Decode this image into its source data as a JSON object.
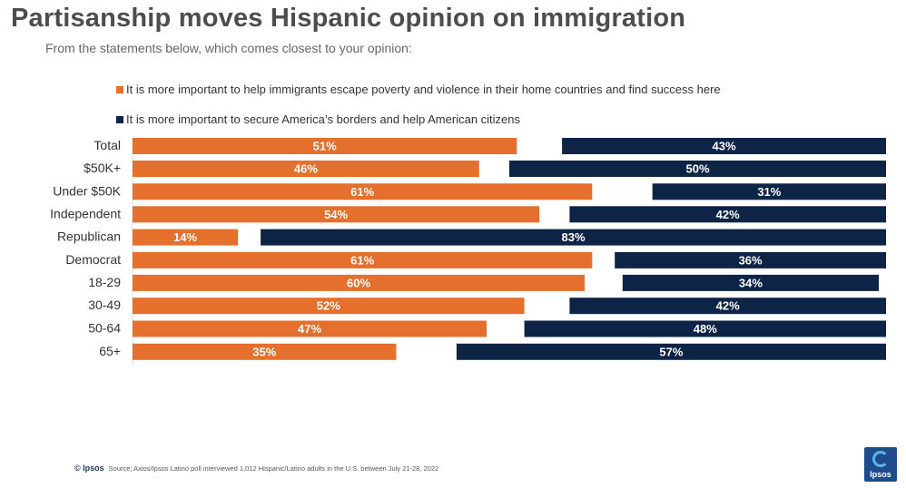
{
  "title": "Partisanship moves Hispanic opinion on immigration",
  "subtitle": "From the statements below, which comes closest to your opinion:",
  "legend": [
    {
      "label": "It is more important to help immigrants escape poverty and violence in their home countries and find success here",
      "color": "#e5702d"
    },
    {
      "label": "It is more important to secure America’s borders and help American citizens",
      "color": "#0e2447"
    }
  ],
  "footer": {
    "brand": "© Ipsos",
    "source": "Source; Axios/Ipsos Latino poll interviewed 1,012 Hispanic/Latino adults in the U.S. between July 21-28, 2022"
  },
  "logo_text": "Ipsos",
  "chart_data": {
    "type": "bar",
    "orientation": "horizontal",
    "stacked_layout": "opposing (left and right aligned)",
    "unit": "%",
    "grid": false,
    "legend_position": "top",
    "xlim": [
      0,
      100
    ],
    "categories": [
      "Total",
      "$50K+",
      "Under $50K",
      "Independent",
      "Republican",
      "Democrat",
      "18-29",
      "30-49",
      "50-64",
      "65+"
    ],
    "groups": [
      [
        "Total"
      ],
      [
        "$50K+",
        "Under $50K"
      ],
      [
        "Independent",
        "Republican",
        "Democrat"
      ],
      [
        "18-29",
        "30-49",
        "50-64",
        "65+"
      ]
    ],
    "series": [
      {
        "name": "It is more important to help immigrants escape poverty and violence in their home countries and find success here",
        "color": "#e5702d",
        "values": [
          51,
          46,
          61,
          54,
          14,
          61,
          60,
          52,
          47,
          35
        ],
        "labels": [
          "51%",
          "46%",
          "61%",
          "54%",
          "14%",
          "61%",
          "60%",
          "52%",
          "47%",
          "35%"
        ]
      },
      {
        "name": "It is more important to secure America’s borders and help American citizens",
        "color": "#0e2447",
        "values": [
          43,
          50,
          31,
          42,
          83,
          36,
          34,
          42,
          48,
          57
        ],
        "labels": [
          "43%",
          "50%",
          "31%",
          "42%",
          "83%",
          "36%",
          "34%",
          "42%",
          "48%",
          "57%"
        ]
      }
    ]
  }
}
